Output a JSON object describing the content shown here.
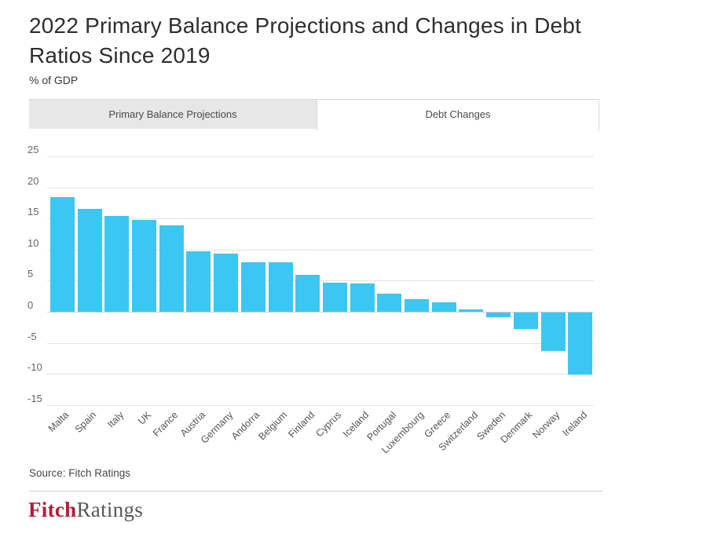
{
  "header": {
    "title_line1": "2022 Primary Balance Projections and Changes in Debt",
    "title_line2": "Ratios Since 2019",
    "unit_label": "% of GDP"
  },
  "tabs": {
    "inactive_label": "Primary Balance Projections",
    "active_label": "Debt Changes"
  },
  "chart_data": {
    "type": "bar",
    "title": "2022 Primary Balance Projections and Changes in Debt Ratios Since 2019",
    "ylabel": "% of GDP",
    "xlabel": "",
    "categories": [
      "Malta",
      "Spain",
      "Italy",
      "UK",
      "France",
      "Austria",
      "Germany",
      "Andorra",
      "Belgium",
      "Finland",
      "Cyprus",
      "Iceland",
      "Portugal",
      "Luxembourg",
      "Greece",
      "Switzerland",
      "Sweden",
      "Denmark",
      "Norway",
      "Ireland"
    ],
    "values": [
      18.5,
      16.5,
      15.4,
      14.8,
      13.9,
      9.7,
      9.3,
      7.9,
      7.9,
      6.0,
      4.7,
      4.5,
      2.9,
      2.0,
      1.5,
      0.4,
      -0.8,
      -2.7,
      -6.2,
      -10.0
    ],
    "yticks": [
      25,
      20,
      15,
      10,
      5,
      0,
      -5,
      -10,
      -15
    ],
    "ylim": [
      -15,
      25
    ],
    "grid": true,
    "legend": false,
    "bar_color": "#3BC7F2"
  },
  "footer": {
    "source": "Source: Fitch Ratings",
    "logo_part1": "Fitch",
    "logo_part2": "Ratings"
  },
  "colors": {
    "bar": "#3BC7F2",
    "grid": "#e3e3e3",
    "zero_line": "#cfcfcf",
    "logo_red": "#AF1E3C",
    "logo_gray": "#56575A"
  }
}
